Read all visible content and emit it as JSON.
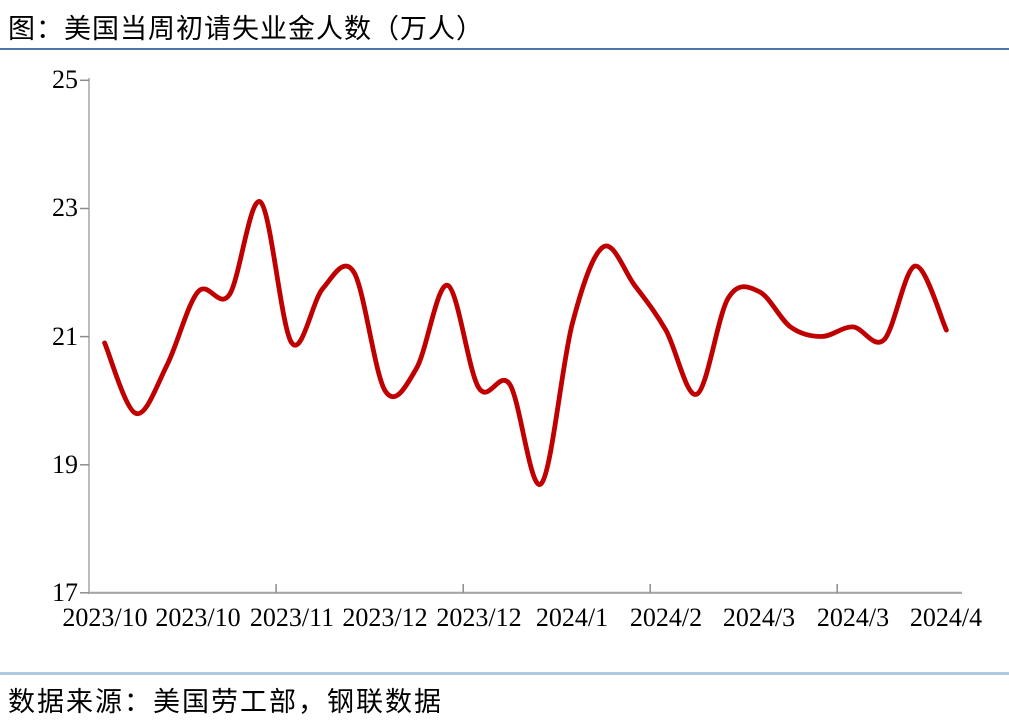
{
  "page": {
    "title": "图：美国当周初请失业金人数（万人）",
    "source_note": "数据来源：美国劳工部，钢联数据"
  },
  "colors": {
    "line": "#C00000",
    "title_divider": "#4C74A8",
    "source_divider": "#AFC8E1",
    "axis": "#A6A6A6",
    "tick": "#8C8C8C",
    "text": "#000000"
  },
  "chart_data": {
    "type": "line",
    "title": "图：美国当周初请失业金人数（万人）",
    "series_name": "美国当周初请失业金人数（万人）",
    "x_labels": [
      "2023/10",
      "2023/10",
      "2023/11",
      "2023/12",
      "2023/12",
      "2024/1",
      "2024/2",
      "2024/3",
      "2024/3",
      "2024/4"
    ],
    "x_label_interval": 3,
    "x_tick_interval": 6,
    "values": [
      20.9,
      19.8,
      20.55,
      21.7,
      21.65,
      23.1,
      20.9,
      21.75,
      22.0,
      20.15,
      20.5,
      21.8,
      20.2,
      20.25,
      18.7,
      21.2,
      22.4,
      21.8,
      21.1,
      20.1,
      21.6,
      21.7,
      21.15,
      21.0,
      21.15,
      20.95,
      22.1,
      21.1
    ],
    "y_tick_labels": [
      "25",
      "23",
      "21",
      "19",
      "17"
    ],
    "ylim": [
      17,
      25
    ],
    "grid": false,
    "legend": "none",
    "line_color": "#C00000",
    "smooth": true
  }
}
